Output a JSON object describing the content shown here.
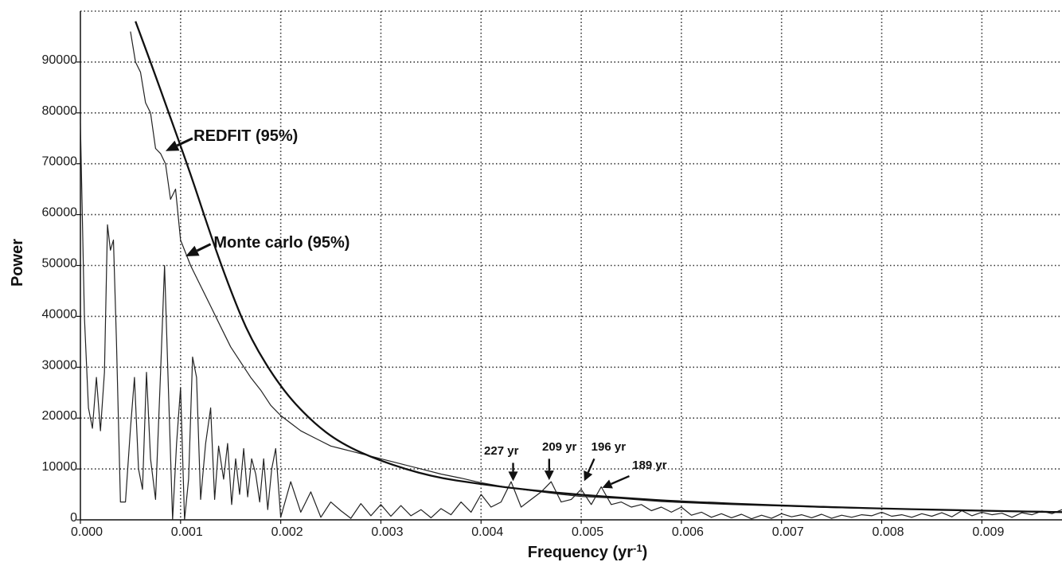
{
  "chart_data": {
    "type": "line",
    "title": "",
    "xlabel": "Frequency (yr",
    "xlabel_sup": "-1",
    "xlabel_close": ")",
    "ylabel": "Power",
    "xlim": [
      0,
      0.0098
    ],
    "ylim": [
      0,
      100000
    ],
    "grid": true,
    "grid_style": "dotted",
    "x_ticks": [
      {
        "v": 0.0,
        "label": "0.000"
      },
      {
        "v": 0.001,
        "label": "0.001"
      },
      {
        "v": 0.002,
        "label": "0.002"
      },
      {
        "v": 0.003,
        "label": "0.003"
      },
      {
        "v": 0.004,
        "label": "0.004"
      },
      {
        "v": 0.005,
        "label": "0.005"
      },
      {
        "v": 0.006,
        "label": "0.006"
      },
      {
        "v": 0.007,
        "label": "0.007"
      },
      {
        "v": 0.008,
        "label": "0.008"
      },
      {
        "v": 0.009,
        "label": "0.009"
      }
    ],
    "y_ticks": [
      {
        "v": 0,
        "label": "0"
      },
      {
        "v": 10000,
        "label": "10000"
      },
      {
        "v": 20000,
        "label": "20000"
      },
      {
        "v": 30000,
        "label": "30000"
      },
      {
        "v": 40000,
        "label": "40000"
      },
      {
        "v": 50000,
        "label": "50000"
      },
      {
        "v": 60000,
        "label": "60000"
      },
      {
        "v": 70000,
        "label": "70000"
      },
      {
        "v": 80000,
        "label": "80000"
      },
      {
        "v": 90000,
        "label": "90000"
      }
    ],
    "series": [
      {
        "key": "spectrum",
        "stroke": "#222222",
        "points": [
          [
            0.0,
            78000
          ],
          [
            4e-05,
            40000
          ],
          [
            8e-05,
            22000
          ],
          [
            0.00012,
            18000
          ],
          [
            0.00016,
            28000
          ],
          [
            0.0002,
            17500
          ],
          [
            0.00024,
            29000
          ],
          [
            0.00027,
            58000
          ],
          [
            0.0003,
            53000
          ],
          [
            0.00033,
            55000
          ],
          [
            0.00036,
            35000
          ],
          [
            0.0004,
            3500
          ],
          [
            0.00045,
            3500
          ],
          [
            0.0005,
            18000
          ],
          [
            0.00054,
            28000
          ],
          [
            0.00058,
            10000
          ],
          [
            0.00062,
            6000
          ],
          [
            0.00066,
            29000
          ],
          [
            0.0007,
            12000
          ],
          [
            0.00075,
            4000
          ],
          [
            0.0008,
            29000
          ],
          [
            0.00084,
            50000
          ],
          [
            0.00088,
            25000
          ],
          [
            0.00092,
            0
          ],
          [
            0.00096,
            15000
          ],
          [
            0.001,
            26000
          ],
          [
            0.00104,
            0
          ],
          [
            0.00108,
            8000
          ],
          [
            0.00112,
            32000
          ],
          [
            0.00116,
            28000
          ],
          [
            0.0012,
            4000
          ],
          [
            0.00125,
            15000
          ],
          [
            0.0013,
            22000
          ],
          [
            0.00134,
            4000
          ],
          [
            0.00138,
            14500
          ],
          [
            0.00143,
            8000
          ],
          [
            0.00147,
            15000
          ],
          [
            0.00151,
            3000
          ],
          [
            0.00155,
            12000
          ],
          [
            0.00159,
            5000
          ],
          [
            0.00163,
            14000
          ],
          [
            0.00167,
            4500
          ],
          [
            0.00171,
            12000
          ],
          [
            0.00175,
            9000
          ],
          [
            0.00179,
            3500
          ],
          [
            0.00183,
            12000
          ],
          [
            0.00187,
            2000
          ],
          [
            0.00191,
            10000
          ],
          [
            0.00195,
            14000
          ],
          [
            0.002,
            500
          ],
          [
            0.0021,
            7500
          ],
          [
            0.0022,
            1500
          ],
          [
            0.0023,
            5500
          ],
          [
            0.0024,
            500
          ],
          [
            0.0025,
            3500
          ],
          [
            0.0026,
            1800
          ],
          [
            0.0027,
            300
          ],
          [
            0.0028,
            3200
          ],
          [
            0.0029,
            800
          ],
          [
            0.003,
            3000
          ],
          [
            0.0031,
            700
          ],
          [
            0.0032,
            2800
          ],
          [
            0.0033,
            800
          ],
          [
            0.0034,
            2000
          ],
          [
            0.0035,
            400
          ],
          [
            0.0036,
            2200
          ],
          [
            0.0037,
            1000
          ],
          [
            0.0038,
            3500
          ],
          [
            0.0039,
            1500
          ],
          [
            0.004,
            5000
          ],
          [
            0.0041,
            2500
          ],
          [
            0.0042,
            3500
          ],
          [
            0.0043,
            7500
          ],
          [
            0.0044,
            2500
          ],
          [
            0.0045,
            4000
          ],
          [
            0.0046,
            5500
          ],
          [
            0.0047,
            7500
          ],
          [
            0.0048,
            3500
          ],
          [
            0.0049,
            4000
          ],
          [
            0.005,
            6000
          ],
          [
            0.0051,
            3000
          ],
          [
            0.0052,
            6500
          ],
          [
            0.0053,
            3000
          ],
          [
            0.0054,
            3500
          ],
          [
            0.0055,
            2500
          ],
          [
            0.0056,
            3000
          ],
          [
            0.0057,
            1800
          ],
          [
            0.0058,
            2500
          ],
          [
            0.0059,
            1500
          ],
          [
            0.006,
            2500
          ],
          [
            0.0061,
            900
          ],
          [
            0.0062,
            1500
          ],
          [
            0.0063,
            500
          ],
          [
            0.0064,
            1200
          ],
          [
            0.0065,
            400
          ],
          [
            0.0066,
            1100
          ],
          [
            0.0067,
            200
          ],
          [
            0.0068,
            900
          ],
          [
            0.0069,
            300
          ],
          [
            0.007,
            1200
          ],
          [
            0.0071,
            600
          ],
          [
            0.0072,
            1000
          ],
          [
            0.0073,
            400
          ],
          [
            0.0074,
            1100
          ],
          [
            0.0075,
            300
          ],
          [
            0.0076,
            900
          ],
          [
            0.0077,
            500
          ],
          [
            0.0078,
            1000
          ],
          [
            0.0079,
            800
          ],
          [
            0.008,
            1500
          ],
          [
            0.0081,
            700
          ],
          [
            0.0082,
            1000
          ],
          [
            0.0083,
            500
          ],
          [
            0.0084,
            1200
          ],
          [
            0.0085,
            700
          ],
          [
            0.0086,
            1400
          ],
          [
            0.0087,
            600
          ],
          [
            0.0088,
            1800
          ],
          [
            0.0089,
            800
          ],
          [
            0.009,
            1500
          ],
          [
            0.0091,
            1000
          ],
          [
            0.0092,
            1300
          ],
          [
            0.0093,
            500
          ],
          [
            0.0094,
            1400
          ],
          [
            0.0095,
            1000
          ],
          [
            0.0096,
            1700
          ],
          [
            0.0097,
            1200
          ],
          [
            0.0098,
            2000
          ]
        ]
      },
      {
        "key": "monte_carlo",
        "stroke": "#222222",
        "points": [
          [
            0.0005,
            96000
          ],
          [
            0.00055,
            90000
          ],
          [
            0.0006,
            88000
          ],
          [
            0.00065,
            82000
          ],
          [
            0.0007,
            80000
          ],
          [
            0.00075,
            73000
          ],
          [
            0.0008,
            72000
          ],
          [
            0.00085,
            70000
          ],
          [
            0.0009,
            63000
          ],
          [
            0.00095,
            65000
          ],
          [
            0.001,
            55000
          ],
          [
            0.0011,
            50000
          ],
          [
            0.0012,
            46000
          ],
          [
            0.0013,
            42000
          ],
          [
            0.0014,
            38000
          ],
          [
            0.0015,
            34000
          ],
          [
            0.0016,
            31000
          ],
          [
            0.0017,
            28000
          ],
          [
            0.0018,
            25500
          ],
          [
            0.0019,
            22500
          ],
          [
            0.002,
            20500
          ],
          [
            0.0021,
            19000
          ],
          [
            0.0022,
            17500
          ],
          [
            0.0023,
            16500
          ],
          [
            0.0024,
            15500
          ],
          [
            0.0025,
            14500
          ],
          [
            0.0026,
            14000
          ],
          [
            0.0027,
            13500
          ],
          [
            0.0028,
            13000
          ],
          [
            0.0029,
            12500
          ],
          [
            0.003,
            12000
          ],
          [
            0.0032,
            11000
          ],
          [
            0.0034,
            10000
          ],
          [
            0.0036,
            9000
          ],
          [
            0.0038,
            8200
          ],
          [
            0.004,
            7300
          ],
          [
            0.0042,
            6600
          ],
          [
            0.0044,
            6000
          ],
          [
            0.0046,
            5500
          ],
          [
            0.0048,
            5000
          ],
          [
            0.005,
            4600
          ],
          [
            0.0052,
            4400
          ],
          [
            0.0054,
            4200
          ],
          [
            0.0056,
            3900
          ],
          [
            0.0058,
            3600
          ],
          [
            0.006,
            3400
          ],
          [
            0.0065,
            3000
          ],
          [
            0.007,
            2700
          ],
          [
            0.0075,
            2400
          ],
          [
            0.008,
            2200
          ],
          [
            0.0085,
            2000
          ],
          [
            0.009,
            1800
          ],
          [
            0.0095,
            1700
          ],
          [
            0.0098,
            1600
          ]
        ]
      }
    ],
    "curve": {
      "key": "redfit",
      "stroke": "#111111",
      "x_start": 0.00055,
      "x_end": 0.0098,
      "points": [
        [
          0.00055,
          98000
        ],
        [
          0.0007,
          90000
        ],
        [
          0.0009,
          79000
        ],
        [
          0.0011,
          68000
        ],
        [
          0.0013,
          56000
        ],
        [
          0.0015,
          45000
        ],
        [
          0.0017,
          35500
        ],
        [
          0.002,
          26000
        ],
        [
          0.0023,
          19500
        ],
        [
          0.0026,
          15000
        ],
        [
          0.003,
          11500
        ],
        [
          0.0035,
          8500
        ],
        [
          0.004,
          7000
        ],
        [
          0.0045,
          5800
        ],
        [
          0.005,
          4900
        ],
        [
          0.0055,
          4200
        ],
        [
          0.006,
          3600
        ],
        [
          0.007,
          2800
        ],
        [
          0.008,
          2200
        ],
        [
          0.009,
          1800
        ],
        [
          0.0098,
          1500
        ]
      ]
    },
    "annotations": [
      {
        "key": "redfit",
        "text": "REDFIT (95%)",
        "size": 20,
        "tx": 0.00113,
        "ty": 74500,
        "ax1": 0.00112,
        "ay1": 75000,
        "ax2": 0.00085,
        "ay2": 72500
      },
      {
        "key": "monte_carlo",
        "text": "Monte carlo (95%)",
        "size": 20,
        "tx": 0.00133,
        "ty": 53500,
        "ax1": 0.0013,
        "ay1": 54200,
        "ax2": 0.00105,
        "ay2": 51800
      },
      {
        "key": "p227",
        "text": "227 yr",
        "size": 15,
        "tx": 0.00403,
        "ty": 12800,
        "ax1": 0.00432,
        "ay1": 11200,
        "ax2": 0.00432,
        "ay2": 7600
      },
      {
        "key": "p209",
        "text": "209 yr",
        "size": 15,
        "tx": 0.00461,
        "ty": 13600,
        "ax1": 0.00468,
        "ay1": 12000,
        "ax2": 0.00468,
        "ay2": 7800
      },
      {
        "key": "p196",
        "text": "196 yr",
        "size": 15,
        "tx": 0.0051,
        "ty": 13600,
        "ax1": 0.00513,
        "ay1": 12000,
        "ax2": 0.00503,
        "ay2": 7600
      },
      {
        "key": "p189",
        "text": "189 yr",
        "size": 15,
        "tx": 0.00551,
        "ty": 10000,
        "ax1": 0.00548,
        "ay1": 8600,
        "ax2": 0.00521,
        "ay2": 6300
      }
    ]
  }
}
